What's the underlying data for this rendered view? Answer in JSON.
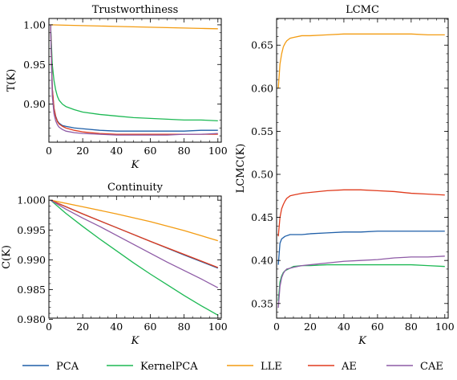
{
  "chart_data": [
    {
      "id": "trust",
      "type": "line",
      "title": "Trustworthiness",
      "xlabel": "K",
      "ylabel": "T(K)",
      "xlim": [
        0,
        102
      ],
      "ylim": [
        0.852,
        1.008
      ],
      "xticks": [
        0,
        20,
        40,
        60,
        80,
        100
      ],
      "yticks": [
        0.9,
        0.95,
        1.0
      ],
      "ytick_labels": [
        "0.90",
        "0.95",
        "1.00"
      ],
      "series": [
        {
          "name": "PCA",
          "color": "#1f5fa8",
          "x": [
            1,
            2,
            3,
            4,
            5,
            6,
            8,
            10,
            15,
            20,
            30,
            40,
            50,
            60,
            70,
            80,
            90,
            100
          ],
          "y": [
            1.0,
            0.92,
            0.895,
            0.885,
            0.879,
            0.876,
            0.873,
            0.872,
            0.87,
            0.869,
            0.867,
            0.866,
            0.866,
            0.866,
            0.866,
            0.866,
            0.867,
            0.867
          ]
        },
        {
          "name": "KernelPCA",
          "color": "#1db954",
          "x": [
            1,
            2,
            3,
            4,
            5,
            6,
            8,
            10,
            15,
            20,
            30,
            40,
            50,
            60,
            70,
            80,
            90,
            100
          ],
          "y": [
            1.0,
            0.95,
            0.93,
            0.918,
            0.91,
            0.905,
            0.9,
            0.897,
            0.893,
            0.89,
            0.887,
            0.885,
            0.883,
            0.882,
            0.881,
            0.88,
            0.88,
            0.879
          ]
        },
        {
          "name": "LLE",
          "color": "#f39c12",
          "x": [
            1,
            10,
            20,
            30,
            40,
            50,
            60,
            70,
            80,
            90,
            100
          ],
          "y": [
            1.0,
            0.9995,
            0.999,
            0.9985,
            0.998,
            0.9975,
            0.997,
            0.9965,
            0.996,
            0.9955,
            0.995
          ]
        },
        {
          "name": "AE",
          "color": "#e03c1e",
          "x": [
            1,
            2,
            3,
            4,
            5,
            6,
            8,
            10,
            15,
            20,
            30,
            40,
            50,
            60,
            70,
            80,
            90,
            100
          ],
          "y": [
            1.0,
            0.92,
            0.895,
            0.884,
            0.878,
            0.875,
            0.872,
            0.87,
            0.867,
            0.865,
            0.863,
            0.862,
            0.862,
            0.862,
            0.862,
            0.862,
            0.862,
            0.862
          ]
        },
        {
          "name": "CAE",
          "color": "#8e5ba6",
          "x": [
            1,
            2,
            3,
            4,
            5,
            6,
            8,
            10,
            15,
            20,
            30,
            40,
            50,
            60,
            70,
            80,
            90,
            100
          ],
          "y": [
            1.0,
            0.91,
            0.888,
            0.879,
            0.874,
            0.871,
            0.868,
            0.866,
            0.864,
            0.863,
            0.862,
            0.861,
            0.861,
            0.861,
            0.861,
            0.862,
            0.862,
            0.863
          ]
        }
      ]
    },
    {
      "id": "cont",
      "type": "line",
      "title": "Continuity",
      "xlabel": "K",
      "ylabel": "C(K)",
      "xlim": [
        0,
        102
      ],
      "ylim": [
        0.9802,
        1.0007
      ],
      "xticks": [
        0,
        20,
        40,
        60,
        80,
        100
      ],
      "yticks": [
        0.98,
        0.985,
        0.99,
        0.995,
        1.0
      ],
      "ytick_labels": [
        "0.980",
        "0.985",
        "0.990",
        "0.995",
        "1.000"
      ],
      "series": [
        {
          "name": "PCA",
          "color": "#1f5fa8",
          "x": [
            1,
            20,
            40,
            60,
            80,
            100
          ],
          "y": [
            1.0,
            0.9977,
            0.9954,
            0.9931,
            0.9908,
            0.9886
          ]
        },
        {
          "name": "KernelPCA",
          "color": "#1db954",
          "x": [
            1,
            10,
            20,
            30,
            40,
            50,
            60,
            70,
            80,
            90,
            100
          ],
          "y": [
            1.0,
            0.9978,
            0.9956,
            0.9935,
            0.9915,
            0.9895,
            0.9876,
            0.9858,
            0.984,
            0.9823,
            0.9807
          ]
        },
        {
          "name": "LLE",
          "color": "#f39c12",
          "x": [
            1,
            20,
            40,
            60,
            80,
            100
          ],
          "y": [
            1.0,
            0.9989,
            0.9977,
            0.9964,
            0.9949,
            0.9932
          ]
        },
        {
          "name": "AE",
          "color": "#e03c1e",
          "x": [
            1,
            20,
            40,
            60,
            80,
            100
          ],
          "y": [
            1.0,
            0.9977,
            0.9954,
            0.9931,
            0.9909,
            0.9887
          ]
        },
        {
          "name": "CAE",
          "color": "#8e5ba6",
          "x": [
            1,
            10,
            20,
            30,
            40,
            50,
            60,
            70,
            80,
            90,
            100
          ],
          "y": [
            1.0,
            0.9985,
            0.997,
            0.9956,
            0.9941,
            0.9926,
            0.9911,
            0.9896,
            0.9882,
            0.9868,
            0.9853
          ]
        }
      ]
    },
    {
      "id": "lcmc",
      "type": "line",
      "title": "LCMC",
      "xlabel": "K",
      "ylabel": "LCMC(K)",
      "xlim": [
        0,
        102
      ],
      "ylim": [
        0.333,
        0.681
      ],
      "xticks": [
        0,
        20,
        40,
        60,
        80,
        100
      ],
      "yticks": [
        0.35,
        0.4,
        0.45,
        0.5,
        0.55,
        0.6,
        0.65
      ],
      "ytick_labels": [
        "0.35",
        "0.40",
        "0.45",
        "0.50",
        "0.55",
        "0.60",
        "0.65"
      ],
      "series": [
        {
          "name": "PCA",
          "color": "#1f5fa8",
          "x": [
            1,
            2,
            3,
            5,
            8,
            10,
            15,
            20,
            30,
            40,
            50,
            60,
            70,
            80,
            90,
            100
          ],
          "y": [
            0.395,
            0.42,
            0.425,
            0.428,
            0.43,
            0.43,
            0.43,
            0.431,
            0.432,
            0.433,
            0.433,
            0.434,
            0.434,
            0.434,
            0.434,
            0.434
          ]
        },
        {
          "name": "KernelPCA",
          "color": "#1db954",
          "x": [
            1,
            2,
            3,
            4,
            5,
            6,
            8,
            10,
            15,
            20,
            30,
            40,
            50,
            60,
            70,
            80,
            90,
            100
          ],
          "y": [
            0.353,
            0.375,
            0.382,
            0.386,
            0.388,
            0.389,
            0.391,
            0.393,
            0.394,
            0.394,
            0.395,
            0.395,
            0.395,
            0.395,
            0.395,
            0.395,
            0.394,
            0.393
          ]
        },
        {
          "name": "LLE",
          "color": "#f39c12",
          "x": [
            1,
            2,
            3,
            4,
            5,
            6,
            8,
            10,
            15,
            20,
            30,
            40,
            50,
            60,
            70,
            80,
            90,
            100
          ],
          "y": [
            0.6,
            0.628,
            0.64,
            0.648,
            0.652,
            0.655,
            0.658,
            0.659,
            0.661,
            0.661,
            0.662,
            0.663,
            0.663,
            0.663,
            0.663,
            0.663,
            0.662,
            0.662
          ]
        },
        {
          "name": "AE",
          "color": "#e03c1e",
          "x": [
            1,
            2,
            3,
            4,
            5,
            6,
            8,
            10,
            15,
            20,
            30,
            40,
            50,
            60,
            70,
            80,
            90,
            100
          ],
          "y": [
            0.428,
            0.45,
            0.46,
            0.465,
            0.469,
            0.472,
            0.475,
            0.476,
            0.478,
            0.479,
            0.481,
            0.482,
            0.482,
            0.481,
            0.48,
            0.478,
            0.477,
            0.476
          ]
        },
        {
          "name": "CAE",
          "color": "#8e5ba6",
          "x": [
            1,
            2,
            3,
            4,
            5,
            6,
            8,
            10,
            15,
            20,
            30,
            40,
            50,
            60,
            70,
            80,
            90,
            100
          ],
          "y": [
            0.345,
            0.37,
            0.38,
            0.385,
            0.388,
            0.39,
            0.391,
            0.392,
            0.394,
            0.395,
            0.397,
            0.399,
            0.4,
            0.401,
            0.403,
            0.404,
            0.404,
            0.405
          ]
        }
      ]
    }
  ],
  "legend": [
    {
      "name": "PCA",
      "color": "#1f5fa8"
    },
    {
      "name": "KernelPCA",
      "color": "#1db954"
    },
    {
      "name": "LLE",
      "color": "#f39c12"
    },
    {
      "name": "AE",
      "color": "#e03c1e"
    },
    {
      "name": "CAE",
      "color": "#8e5ba6"
    }
  ]
}
